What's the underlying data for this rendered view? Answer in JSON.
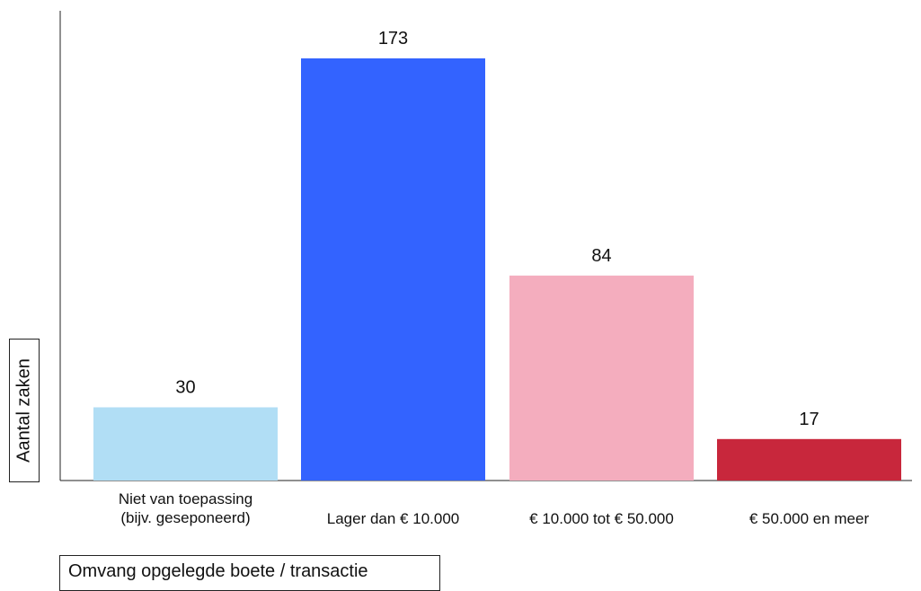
{
  "chart_data": {
    "type": "bar",
    "categories": [
      [
        "Niet van toepassing",
        "(bijv. geseponeerd)"
      ],
      [
        "Lager dan € 10.000"
      ],
      [
        "€ 10.000 tot € 50.000"
      ],
      [
        "€ 50.000 en meer"
      ]
    ],
    "values": [
      30,
      173,
      84,
      17
    ],
    "colors": [
      "#b1def5",
      "#3363ff",
      "#f4adbe",
      "#c8273c"
    ],
    "value_labels": [
      "30",
      "173",
      "84",
      "17"
    ],
    "xlabel": "Omvang opgelegde boete / transactie",
    "ylabel": "Aantal zaken",
    "ylim": [
      0,
      173
    ],
    "grid": false,
    "legend": "none"
  }
}
